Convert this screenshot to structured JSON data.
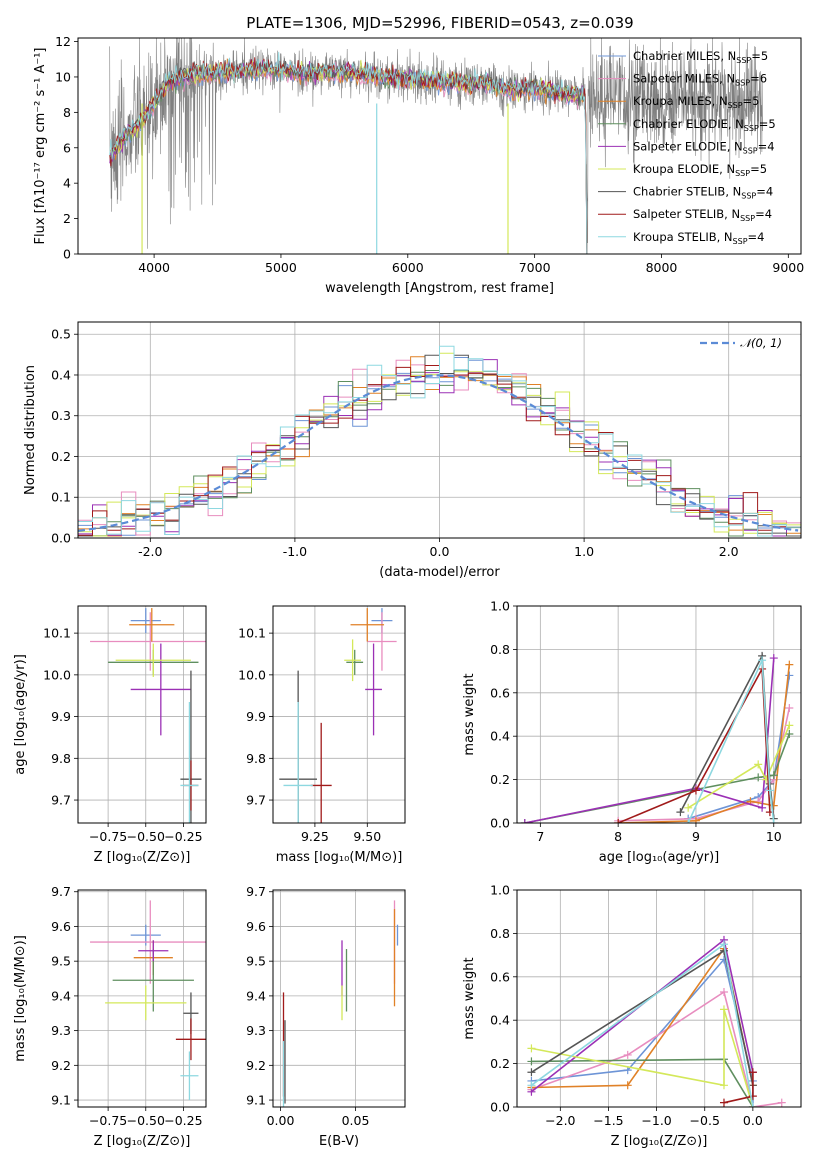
{
  "title": "PLATE=1306, MJD=52996, FIBERID=0543, z=0.039",
  "models": [
    {
      "name": "Chabrier MILES, N$_{SSP}$=5",
      "label": "Chabrier MILES, N",
      "sub": "SSP",
      "suffix": "=5",
      "color": "#6d94d6"
    },
    {
      "name": "Salpeter MILES",
      "label": "Salpeter MILES, N",
      "sub": "SSP",
      "suffix": "=6",
      "color": "#e88dbf"
    },
    {
      "name": "Kroupa MILES",
      "label": "Kroupa MILES, N",
      "sub": "SSP",
      "suffix": "=5",
      "color": "#e08127"
    },
    {
      "name": "Chabrier ELODIE",
      "label": "Chabrier ELODIE, N",
      "sub": "SSP",
      "suffix": "=5",
      "color": "#5f8f5f"
    },
    {
      "name": "Salpeter ELODIE",
      "label": "Salpeter ELODIE, N",
      "sub": "SSP",
      "suffix": "=4",
      "color": "#9b30b5"
    },
    {
      "name": "Kroupa ELODIE",
      "label": "Kroupa ELODIE, N",
      "sub": "SSP",
      "suffix": "=5",
      "color": "#d4e85a"
    },
    {
      "name": "Chabrier STELIB",
      "label": "Chabrier STELIB, N",
      "sub": "SSP",
      "suffix": "=4",
      "color": "#555555"
    },
    {
      "name": "Salpeter STELIB",
      "label": "Salpeter STELIB, N",
      "sub": "SSP",
      "suffix": "=4",
      "color": "#a01a1a"
    },
    {
      "name": "Kroupa STELIB",
      "label": "Kroupa STELIB, N",
      "sub": "SSP",
      "suffix": "=4",
      "color": "#8ed8e0"
    }
  ],
  "chart_data": [
    {
      "id": "spectrum",
      "type": "line",
      "xlabel": "wavelength [Angstrom, rest frame]",
      "ylabel": "Flux [fλ10⁻¹⁷ erg cm⁻² s⁻¹ A⁻¹]",
      "xlim": [
        3400,
        9100
      ],
      "ylim": [
        0,
        12.2
      ],
      "xticks": [
        4000,
        5000,
        6000,
        7000,
        8000,
        9000
      ],
      "yticks": [
        0,
        2,
        4,
        6,
        8,
        10,
        12
      ],
      "data_color": "#808080",
      "data_x_range": [
        3650,
        8800
      ],
      "continuum": {
        "x": [
          3650,
          3700,
          3800,
          3900,
          4000,
          4100,
          4200,
          4400,
          4600,
          4800,
          5000,
          5200,
          5400,
          5600,
          5800,
          6000,
          6200,
          6400,
          6600,
          6800,
          7000,
          7200,
          7400,
          7420
        ],
        "y": [
          5.5,
          6.0,
          6.8,
          7.5,
          8.5,
          9.6,
          10.0,
          10.2,
          10.3,
          10.4,
          10.4,
          10.2,
          10.3,
          10.2,
          10.0,
          9.9,
          9.8,
          9.6,
          9.6,
          9.3,
          9.3,
          9.1,
          8.9,
          0
        ]
      },
      "legend": "top-right"
    },
    {
      "id": "residuals",
      "type": "step",
      "xlabel": "(data-model)/error",
      "ylabel": "Normed distribution",
      "xlim": [
        -2.5,
        2.5
      ],
      "ylim": [
        0,
        0.53
      ],
      "xticks": [
        -2,
        -1,
        0,
        1,
        2
      ],
      "yticks": [
        0,
        0.1,
        0.2,
        0.3,
        0.4,
        0.5
      ],
      "bin_width": 0.1,
      "reference": {
        "name": "N(0,1)",
        "label": "𝒩(0, 1)",
        "color": "#5b8bd6",
        "dashed": true
      },
      "legend": "top-right"
    },
    {
      "id": "Z_age",
      "type": "errorbar",
      "xlabel": "Z [log₁₀(Z/Z⊙)]",
      "ylabel": "age  [log₁₀(age/yr)]",
      "xlim": [
        -0.95,
        -0.1
      ],
      "ylim": [
        9.645,
        10.165
      ],
      "xticks": [
        -0.75,
        -0.5,
        -0.25
      ],
      "yticks": [
        9.7,
        9.8,
        9.9,
        10.0,
        10.1
      ],
      "xtick_labels": [
        "−0.75",
        "−0.50",
        "−0.25"
      ],
      "points": [
        {
          "x": -0.5,
          "xerr": 0.1,
          "y": 10.13,
          "yerr": 0.03
        },
        {
          "x": -0.47,
          "xerr": 0.4,
          "y": 10.08,
          "yerr": 0.07
        },
        {
          "x": -0.46,
          "xerr": 0.15,
          "y": 10.12,
          "yerr": 0.04
        },
        {
          "x": -0.45,
          "xerr": 0.3,
          "y": 10.03,
          "yerr": 0.03
        },
        {
          "x": -0.4,
          "xerr": 0.2,
          "y": 9.965,
          "yerr": 0.11
        },
        {
          "x": -0.45,
          "xerr": 0.25,
          "y": 10.035,
          "yerr": 0.04
        },
        {
          "x": -0.2,
          "xerr": 0.07,
          "y": 9.75,
          "yerr": 0.26
        },
        {
          "x": -0.2,
          "xerr": 0.05,
          "y": 9.735,
          "yerr": 0.06
        },
        {
          "x": -0.21,
          "xerr": 0.06,
          "y": 9.735,
          "yerr": 0.2
        }
      ]
    },
    {
      "id": "mass_age",
      "type": "errorbar",
      "xlabel": "mass [log₁₀(M/M⊙)]",
      "ylabel": "",
      "xlim": [
        9.05,
        9.68
      ],
      "ylim": [
        9.645,
        10.165
      ],
      "xticks": [
        9.25,
        9.5
      ],
      "yticks": [
        9.7,
        9.8,
        9.9,
        10.0,
        10.1
      ],
      "xtick_labels": [
        "9.25",
        "9.50"
      ],
      "points": [
        {
          "x": 9.57,
          "xerr": 0.05,
          "y": 10.13,
          "yerr": 0.03
        },
        {
          "x": 9.57,
          "xerr": 0.07,
          "y": 10.08,
          "yerr": 0.07
        },
        {
          "x": 9.5,
          "xerr": 0.08,
          "y": 10.12,
          "yerr": 0.04
        },
        {
          "x": 9.44,
          "xerr": 0.04,
          "y": 10.03,
          "yerr": 0.03
        },
        {
          "x": 9.53,
          "xerr": 0.04,
          "y": 9.965,
          "yerr": 0.11
        },
        {
          "x": 9.43,
          "xerr": 0.04,
          "y": 10.035,
          "yerr": 0.05
        },
        {
          "x": 9.17,
          "xerr": 0.09,
          "y": 9.75,
          "yerr": 0.26
        },
        {
          "x": 9.28,
          "xerr": 0.05,
          "y": 9.735,
          "yerr": 0.15
        },
        {
          "x": 9.17,
          "xerr": 0.07,
          "y": 9.735,
          "yerr": 0.2
        }
      ]
    },
    {
      "id": "age_weight",
      "type": "line",
      "xlabel": "age  [log₁₀(age/yr)]",
      "ylabel": "mass weight",
      "xlim": [
        6.7,
        10.35
      ],
      "ylim": [
        0,
        1.0
      ],
      "xticks": [
        7,
        8,
        9,
        10
      ],
      "yticks": [
        0,
        0.2,
        0.4,
        0.6,
        0.8,
        1.0
      ],
      "series": [
        {
          "x": [
            8.9,
            9.8,
            10.0,
            10.2
          ],
          "y": [
            0.02,
            0.12,
            0.2,
            0.68
          ]
        },
        {
          "x": [
            8.0,
            9.0,
            9.8,
            10.0,
            10.2
          ],
          "y": [
            0.01,
            0.02,
            0.1,
            0.2,
            0.53
          ]
        },
        {
          "x": [
            8.0,
            9.0,
            9.7,
            10.0,
            10.2
          ],
          "y": [
            0.0,
            0.01,
            0.1,
            0.08,
            0.73
          ]
        },
        {
          "x": [
            6.8,
            9.8,
            10.0,
            10.2
          ],
          "y": [
            0.0,
            0.21,
            0.22,
            0.41
          ]
        },
        {
          "x": [
            6.8,
            9.0,
            9.85,
            10.0
          ],
          "y": [
            0.0,
            0.16,
            0.07,
            0.76
          ]
        },
        {
          "x": [
            8.9,
            9.8,
            9.9,
            10.2
          ],
          "y": [
            0.07,
            0.27,
            0.2,
            0.45
          ]
        },
        {
          "x": [
            8.8,
            9.85,
            9.95,
            10.0
          ],
          "y": [
            0.05,
            0.77,
            0.18,
            0.02
          ]
        },
        {
          "x": [
            8.0,
            9.0,
            9.85,
            9.95
          ],
          "y": [
            0.0,
            0.15,
            0.71,
            0.05
          ]
        },
        {
          "x": [
            8.9,
            9.85,
            9.95,
            10.0
          ],
          "y": [
            0.0,
            0.75,
            0.15,
            0.0
          ]
        }
      ]
    },
    {
      "id": "Z_mass",
      "type": "errorbar",
      "xlabel": "Z [log₁₀(Z/Z⊙)]",
      "ylabel": "mass [log₁₀(M/M⊙)]",
      "xlim": [
        -0.95,
        -0.1
      ],
      "ylim": [
        9.08,
        9.705
      ],
      "xticks": [
        -0.75,
        -0.5,
        -0.25
      ],
      "yticks": [
        9.1,
        9.2,
        9.3,
        9.4,
        9.5,
        9.6,
        9.7
      ],
      "xtick_labels": [
        "−0.75",
        "−0.50",
        "−0.25"
      ],
      "points": [
        {
          "x": -0.5,
          "xerr": 0.1,
          "y": 9.575,
          "yerr": 0.03
        },
        {
          "x": -0.47,
          "xerr": 0.4,
          "y": 9.555,
          "yerr": 0.12
        },
        {
          "x": -0.45,
          "xerr": 0.13,
          "y": 9.51,
          "yerr": 0.05
        },
        {
          "x": -0.45,
          "xerr": 0.27,
          "y": 9.445,
          "yerr": 0.09
        },
        {
          "x": -0.45,
          "xerr": 0.1,
          "y": 9.53,
          "yerr": 0.03
        },
        {
          "x": -0.5,
          "xerr": 0.27,
          "y": 9.38,
          "yerr": 0.05
        },
        {
          "x": -0.2,
          "xerr": 0.05,
          "y": 9.35,
          "yerr": 0.06
        },
        {
          "x": -0.2,
          "xerr": 0.1,
          "y": 9.275,
          "yerr": 0.06
        },
        {
          "x": -0.21,
          "xerr": 0.06,
          "y": 9.17,
          "yerr": 0.07
        }
      ]
    },
    {
      "id": "ebv_mass",
      "type": "errorbar",
      "xlabel": "E(B-V)",
      "ylabel": "",
      "xlim": [
        -0.005,
        0.083
      ],
      "ylim": [
        9.08,
        9.705
      ],
      "xticks": [
        0.0,
        0.05
      ],
      "yticks": [
        9.1,
        9.2,
        9.3,
        9.4,
        9.5,
        9.6,
        9.7
      ],
      "xtick_labels": [
        "0.00",
        "0.05"
      ],
      "points": [
        {
          "x": 0.078,
          "xerr": 0,
          "y": 9.575,
          "yerr": 0.03
        },
        {
          "x": 0.076,
          "xerr": 0,
          "y": 9.555,
          "yerr": 0.12
        },
        {
          "x": 0.076,
          "xerr": 0,
          "y": 9.51,
          "yerr": 0.14
        },
        {
          "x": 0.044,
          "xerr": 0,
          "y": 9.445,
          "yerr": 0.09
        },
        {
          "x": 0.041,
          "xerr": 0,
          "y": 9.48,
          "yerr": 0.08
        },
        {
          "x": 0.041,
          "xerr": 0,
          "y": 9.38,
          "yerr": 0.05
        },
        {
          "x": 0.003,
          "xerr": 0,
          "y": 9.21,
          "yerr": 0.12
        },
        {
          "x": 0.002,
          "xerr": 0,
          "y": 9.26,
          "yerr": 0.15
        },
        {
          "x": 0.002,
          "xerr": 0,
          "y": 9.17,
          "yerr": 0.1
        }
      ]
    },
    {
      "id": "Z_weight",
      "type": "line",
      "xlabel": "Z [log₁₀(Z/Z⊙)]",
      "ylabel": "mass weight",
      "xlim": [
        -2.45,
        0.5
      ],
      "ylim": [
        0,
        1.0
      ],
      "xticks": [
        -2.0,
        -1.5,
        -1.0,
        -0.5,
        0.0
      ],
      "yticks": [
        0,
        0.2,
        0.4,
        0.6,
        0.8,
        1.0
      ],
      "xtick_labels": [
        "−2.0",
        "−1.5",
        "−1.0",
        "−0.5",
        "0.0"
      ],
      "series": [
        {
          "x": [
            -2.3,
            -1.3,
            -0.3,
            0.0,
            0.0
          ],
          "y": [
            0.12,
            0.17,
            0.68,
            0.12,
            0.0
          ]
        },
        {
          "x": [
            -2.3,
            -1.3,
            -0.3,
            0.0,
            0.3
          ],
          "y": [
            0.08,
            0.24,
            0.53,
            0.0,
            0.02
          ]
        },
        {
          "x": [
            -2.3,
            -1.3,
            -0.3,
            0.0
          ],
          "y": [
            0.09,
            0.1,
            0.73,
            0.1
          ]
        },
        {
          "x": [
            -2.3,
            -0.3,
            0.0
          ],
          "y": [
            0.21,
            0.22,
            0.0
          ]
        },
        {
          "x": [
            -2.3,
            -0.3,
            0.0
          ],
          "y": [
            0.07,
            0.77,
            0.16
          ]
        },
        {
          "x": [
            -2.3,
            -0.3,
            -0.3,
            0.0
          ],
          "y": [
            0.27,
            0.1,
            0.45,
            0.0
          ]
        },
        {
          "x": [
            -2.3,
            -0.3,
            0.0
          ],
          "y": [
            0.16,
            0.72,
            0.1
          ]
        },
        {
          "x": [
            -0.3,
            0.0,
            0.0
          ],
          "y": [
            0.02,
            0.05,
            0.16
          ]
        },
        {
          "x": [
            -2.3,
            -0.3,
            0.0
          ],
          "y": [
            0.1,
            0.75,
            0.0
          ]
        }
      ]
    }
  ]
}
